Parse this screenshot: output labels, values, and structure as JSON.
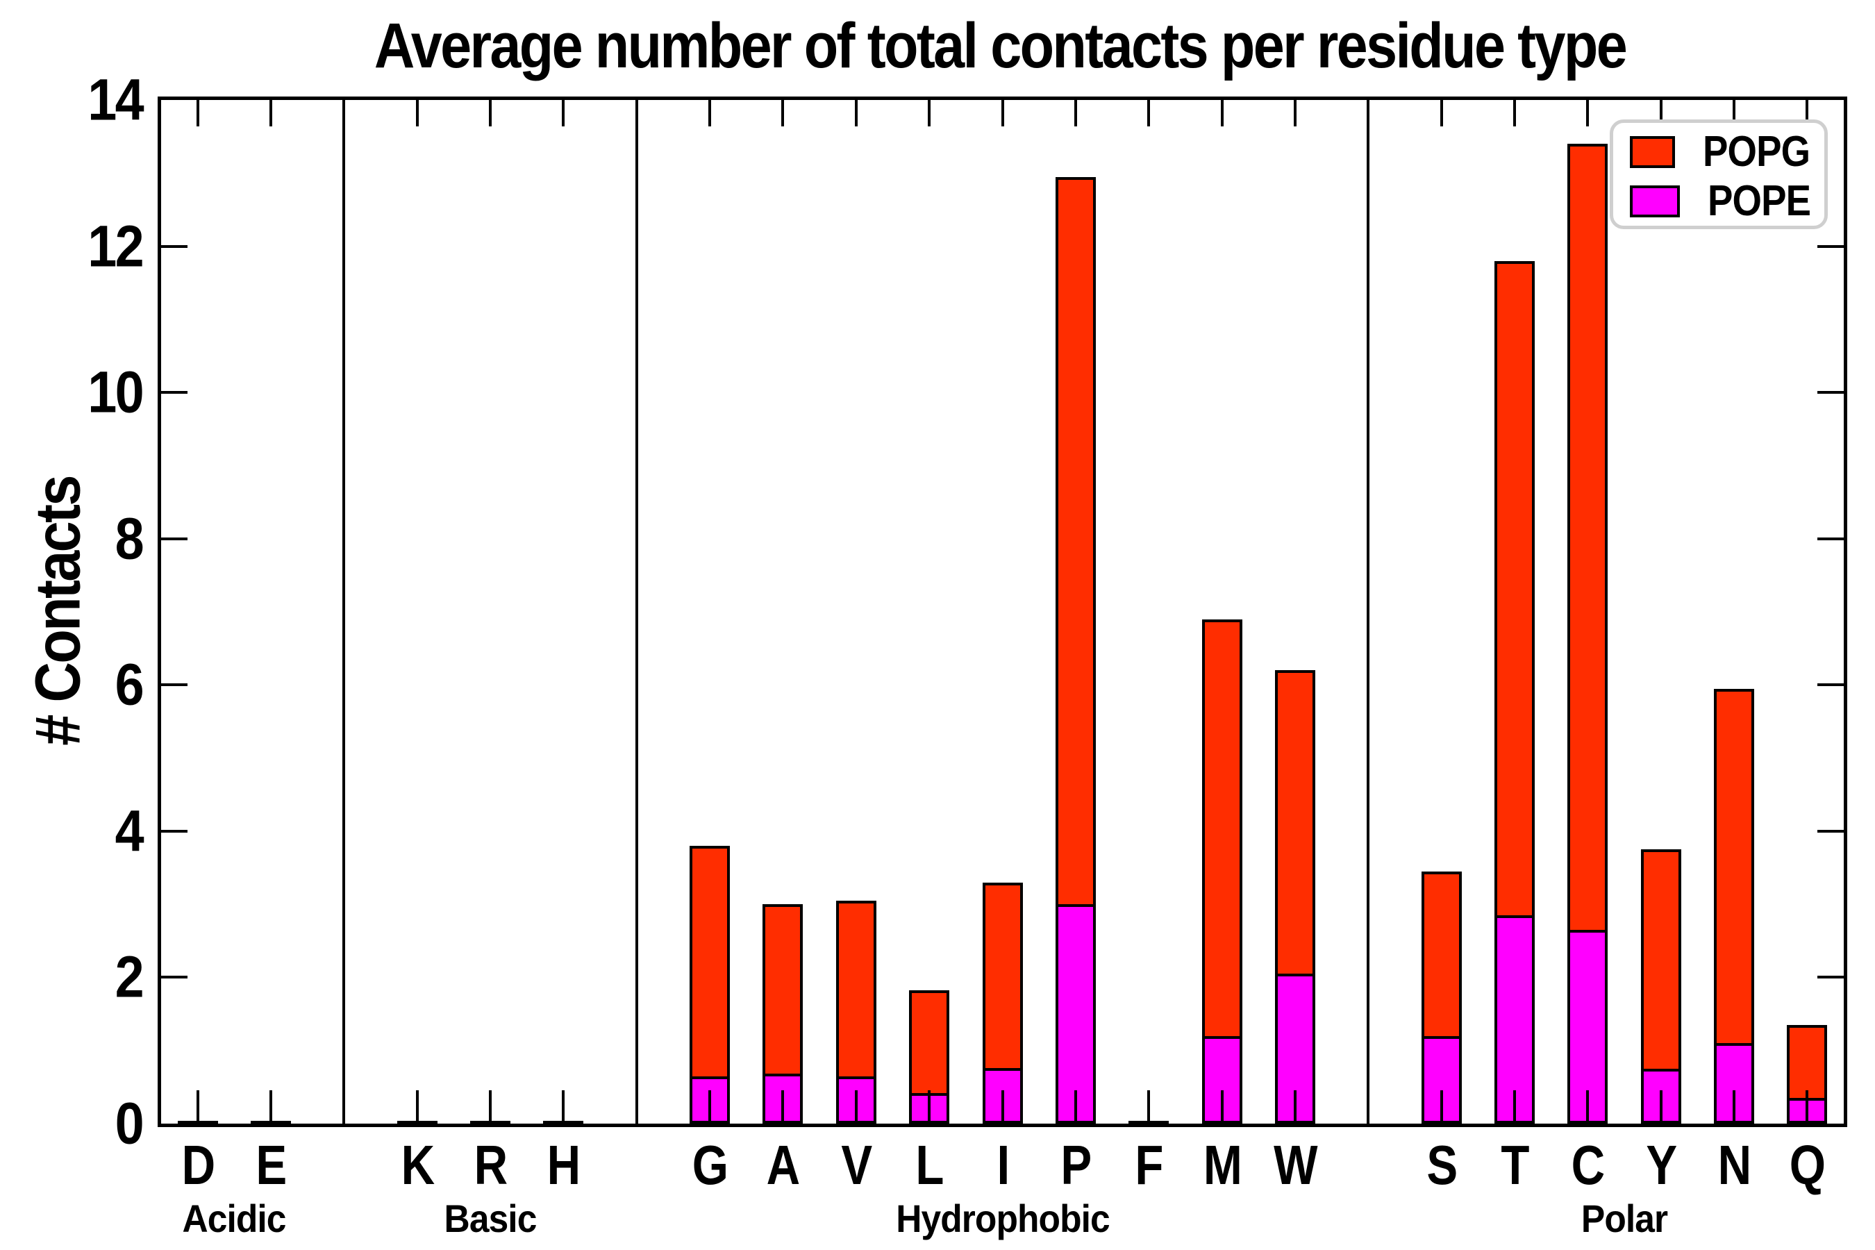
{
  "chart_data": {
    "type": "bar",
    "stacked": true,
    "title": "Average number of total contacts per residue type",
    "ylabel": "# Contacts",
    "xlabel": "",
    "ylim": [
      0,
      14
    ],
    "yticks": [
      0,
      2,
      4,
      6,
      8,
      10,
      12,
      14
    ],
    "grid": false,
    "legend_position": "upper right",
    "legend": [
      {
        "label": "POPG",
        "color": "#ff2d00"
      },
      {
        "label": "POPE",
        "color": "#ff00ff"
      }
    ],
    "series_stack_order_bottom_to_top": [
      "POPE",
      "POPG"
    ],
    "groups": [
      {
        "label": "Acidic",
        "residues": [
          "D",
          "E"
        ],
        "POPE": [
          0.01,
          0.01
        ],
        "POPG": [
          0.02,
          0.02
        ]
      },
      {
        "label": "Basic",
        "residues": [
          "K",
          "R",
          "H"
        ],
        "POPE": [
          0.01,
          0.01,
          0.01
        ],
        "POPG": [
          0.02,
          0.02,
          0.02
        ]
      },
      {
        "label": "Hydrophobic",
        "residues": [
          "G",
          "A",
          "V",
          "L",
          "I",
          "P",
          "F",
          "M",
          "W"
        ],
        "POPE": [
          0.65,
          0.68,
          0.65,
          0.42,
          0.76,
          3.0,
          0.01,
          1.2,
          2.05
        ],
        "POPG": [
          3.15,
          2.32,
          2.4,
          1.4,
          2.54,
          9.95,
          0.01,
          5.7,
          4.15
        ]
      },
      {
        "label": "Polar",
        "residues": [
          "S",
          "T",
          "C",
          "Y",
          "N",
          "Q"
        ],
        "POPE": [
          1.2,
          2.85,
          2.65,
          0.75,
          1.1,
          0.35
        ],
        "POPG": [
          2.25,
          8.95,
          10.75,
          3.0,
          4.85,
          1.0
        ]
      }
    ]
  }
}
